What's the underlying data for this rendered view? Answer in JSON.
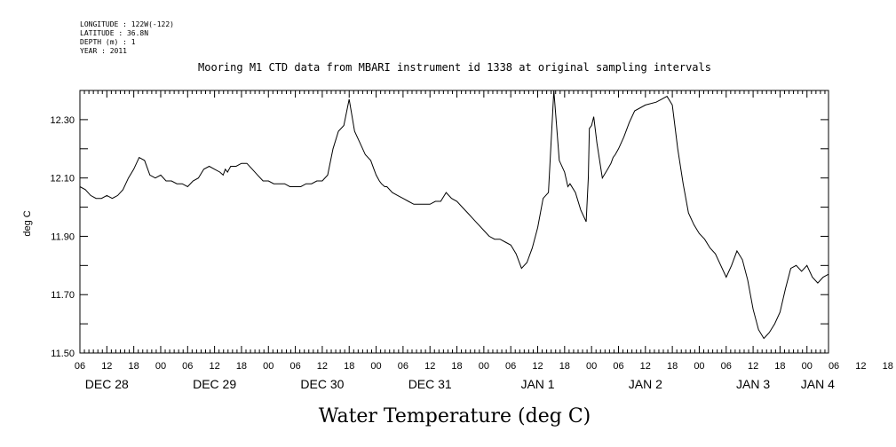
{
  "meta_lines": [
    "LONGITUDE : 122W(-122)",
    "LATITUDE : 36.8N",
    "DEPTH (m) : 1",
    "YEAR : 2011"
  ],
  "chart_data": {
    "type": "line",
    "title": "Mooring M1 CTD data from MBARI instrument id 1338 at original sampling intervals",
    "xlabel": "Water Temperature (deg C)",
    "ylabel": "deg C",
    "ylim": [
      11.5,
      12.4
    ],
    "yticks": [
      11.5,
      11.7,
      11.9,
      12.1,
      12.3
    ],
    "ytick_labels": [
      "11.50",
      "11.70",
      "11.90",
      "12.10",
      "12.30"
    ],
    "xlim": [
      1.25,
      8.2
    ],
    "x_unit": "days since Dec 27 2011 00:00",
    "hour_tick_labels": [
      "06",
      "12",
      "18",
      "00",
      "06",
      "12",
      "18",
      "00",
      "06",
      "12",
      "18",
      "00",
      "06",
      "12",
      "18",
      "00",
      "06",
      "12",
      "18",
      "00",
      "06",
      "12",
      "18",
      "00",
      "06",
      "12",
      "18",
      "00",
      "06",
      "12",
      "18",
      "00"
    ],
    "day_labels": [
      "DEC 28",
      "DEC 29",
      "DEC 30",
      "DEC 31",
      "JAN 1",
      "JAN 2",
      "JAN 3",
      "JAN 4"
    ],
    "grid": false,
    "series": [
      {
        "name": "",
        "x": [
          1.25,
          1.3,
          1.35,
          1.4,
          1.45,
          1.5,
          1.55,
          1.6,
          1.65,
          1.7,
          1.75,
          1.8,
          1.85,
          1.9,
          1.95,
          2.0,
          2.05,
          2.1,
          2.15,
          2.2,
          2.25,
          2.3,
          2.35,
          2.4,
          2.45,
          2.5,
          2.55,
          2.58,
          2.6,
          2.62,
          2.65,
          2.7,
          2.75,
          2.8,
          2.85,
          2.9,
          2.95,
          3.0,
          3.05,
          3.1,
          3.15,
          3.2,
          3.25,
          3.3,
          3.35,
          3.4,
          3.45,
          3.5,
          3.55,
          3.6,
          3.65,
          3.7,
          3.75,
          3.8,
          3.85,
          3.9,
          3.95,
          3.98,
          4.0,
          4.03,
          4.05,
          4.08,
          4.1,
          4.15,
          4.2,
          4.25,
          4.3,
          4.35,
          4.4,
          4.45,
          4.5,
          4.55,
          4.6,
          4.65,
          4.7,
          4.75,
          4.8,
          4.85,
          4.9,
          4.95,
          5.0,
          5.05,
          5.1,
          5.15,
          5.2,
          5.25,
          5.3,
          5.35,
          5.4,
          5.45,
          5.5,
          5.55,
          5.6,
          5.65,
          5.7,
          5.75,
          5.78,
          5.8,
          5.85,
          5.9,
          5.95,
          5.97,
          5.98,
          6.0,
          6.02,
          6.05,
          6.1,
          6.15,
          6.18,
          6.2,
          6.22,
          6.25,
          6.3,
          6.35,
          6.4,
          6.5,
          6.6,
          6.65,
          6.7,
          6.75,
          6.8,
          6.85,
          6.9,
          6.95,
          7.0,
          7.05,
          7.1,
          7.15,
          7.2,
          7.25,
          7.3,
          7.35,
          7.4,
          7.45,
          7.5,
          7.55,
          7.6,
          7.65,
          7.7,
          7.75,
          7.8,
          7.85,
          7.9,
          7.95,
          8.0,
          8.05,
          8.1,
          8.15,
          8.2
        ],
        "y": [
          12.07,
          12.06,
          12.04,
          12.03,
          12.03,
          12.04,
          12.03,
          12.04,
          12.06,
          12.1,
          12.13,
          12.17,
          12.16,
          12.11,
          12.1,
          12.11,
          12.09,
          12.09,
          12.08,
          12.08,
          12.07,
          12.09,
          12.1,
          12.13,
          12.14,
          12.13,
          12.12,
          12.11,
          12.13,
          12.12,
          12.14,
          12.14,
          12.15,
          12.15,
          12.13,
          12.11,
          12.09,
          12.09,
          12.08,
          12.08,
          12.08,
          12.07,
          12.07,
          12.07,
          12.08,
          12.08,
          12.09,
          12.09,
          12.11,
          12.2,
          12.26,
          12.28,
          12.37,
          12.26,
          12.22,
          12.18,
          12.16,
          12.13,
          12.11,
          12.09,
          12.08,
          12.07,
          12.07,
          12.05,
          12.04,
          12.03,
          12.02,
          12.01,
          12.01,
          12.01,
          12.01,
          12.02,
          12.02,
          12.05,
          12.03,
          12.02,
          12.0,
          11.98,
          11.96,
          11.94,
          11.92,
          11.9,
          11.89,
          11.89,
          11.88,
          11.87,
          11.84,
          11.79,
          11.81,
          11.86,
          11.93,
          12.03,
          12.05,
          12.4,
          12.16,
          12.12,
          12.07,
          12.08,
          12.05,
          11.99,
          11.95,
          12.1,
          12.27,
          12.28,
          12.31,
          12.22,
          12.1,
          12.13,
          12.15,
          12.17,
          12.18,
          12.2,
          12.24,
          12.29,
          12.33,
          12.35,
          12.36,
          12.37,
          12.38,
          12.35,
          12.2,
          12.08,
          11.98,
          11.94,
          11.91,
          11.89,
          11.86,
          11.84,
          11.8,
          11.76,
          11.8,
          11.85,
          11.82,
          11.75,
          11.65,
          11.58,
          11.55,
          11.57,
          11.6,
          11.64,
          11.72,
          11.79,
          11.8,
          11.78,
          11.8,
          11.76,
          11.74,
          11.76,
          11.77
        ]
      }
    ]
  }
}
